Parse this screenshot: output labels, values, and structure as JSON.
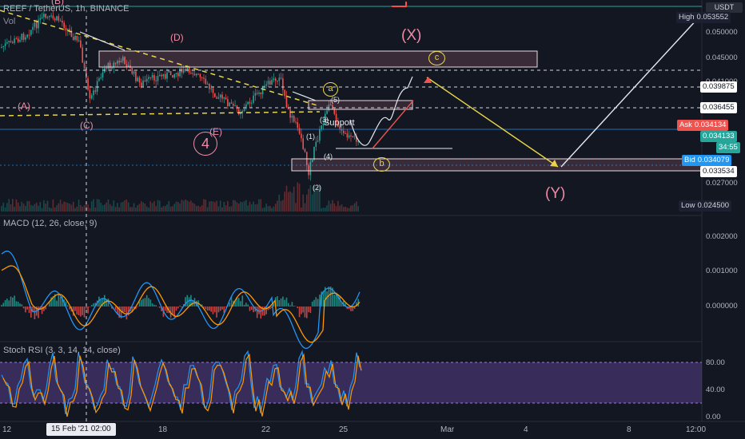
{
  "header": {
    "symbol": "REEF / TetherUS, 1h, BINANCE",
    "vol_label": "Vol",
    "currency": "USDT"
  },
  "price_axis": {
    "ticks": [
      "0.050000",
      "0.045000",
      "0.041000",
      "0.027000"
    ],
    "tags": {
      "high": {
        "key": "High",
        "value": "0.053552",
        "color": "#1c2030"
      },
      "level_1": {
        "value": "0.039875",
        "color": "#ffffff"
      },
      "level_2": {
        "value": "0.036455",
        "color": "#ffffff"
      },
      "ask": {
        "key": "Ask",
        "value": "0.034134",
        "color": "#ef5350"
      },
      "last": {
        "value": "0.034133",
        "color": "#26a69a"
      },
      "countdown": {
        "value": "34:55",
        "color": "#26a69a"
      },
      "bid": {
        "key": "Bid",
        "value": "0.034079",
        "color": "#2196f3"
      },
      "level_3": {
        "value": "0.033534",
        "color": "#ffffff"
      },
      "low": {
        "key": "Low",
        "value": "0.024500",
        "color": "#1c2030"
      }
    }
  },
  "time_axis": {
    "labels": [
      "12",
      "18",
      "22",
      "25",
      "Mar",
      "4",
      "8",
      "12:00"
    ],
    "crosshair_label": "15 Feb '21    02:00"
  },
  "wave_labels": {
    "B": "(B)",
    "A": "(A)",
    "C": "(C)",
    "D": "(D)",
    "E": "(E)",
    "four": "4",
    "X": "(X)",
    "Y": "(Y)",
    "w1": "(1)",
    "w2": "(2)",
    "w3": "(3)",
    "w4": "(4)",
    "w5": "(5)",
    "a": "a",
    "b": "b",
    "c": "c",
    "support": "Support"
  },
  "macd": {
    "title": "MACD (12, 26, close, 9)",
    "ticks": [
      "0.002000",
      "0.001000",
      "0.000000"
    ]
  },
  "stoch": {
    "title": "Stoch RSI (3, 3, 14, 14, close)",
    "ticks": [
      "80.00",
      "40.00",
      "0.00"
    ]
  },
  "colors": {
    "background": "#131722",
    "up_candle": "#26a69a",
    "down_candle": "#ef5350",
    "macd_line": "#2196f3",
    "signal_line": "#ff9800",
    "stoch_k": "#2196f3",
    "stoch_d": "#ff9800",
    "band": "#7e57c2",
    "wave_label": "#f08aa6",
    "fib_circle": "#e8d54a"
  },
  "chart_data": {
    "type": "candlestick",
    "symbol": "REEF/USDT",
    "interval": "1h",
    "exchange": "BINANCE",
    "price_range": [
      0.0245,
      0.053552
    ],
    "high": 0.053552,
    "low": 0.0245,
    "ask": 0.034134,
    "last": 0.034133,
    "bid": 0.034079,
    "marked_levels": [
      0.039875,
      0.036455,
      0.033534
    ],
    "x_tick_labels": [
      "12",
      "18",
      "22",
      "25",
      "Mar",
      "4",
      "8",
      "12:00"
    ],
    "macd": {
      "params": "12, 26, close, 9",
      "range": [
        -0.0005,
        0.0025
      ]
    },
    "stoch_rsi": {
      "params": "3, 3, 14, 14, close",
      "range": [
        0,
        100
      ],
      "upper_band": 80,
      "lower_band": 20
    }
  }
}
